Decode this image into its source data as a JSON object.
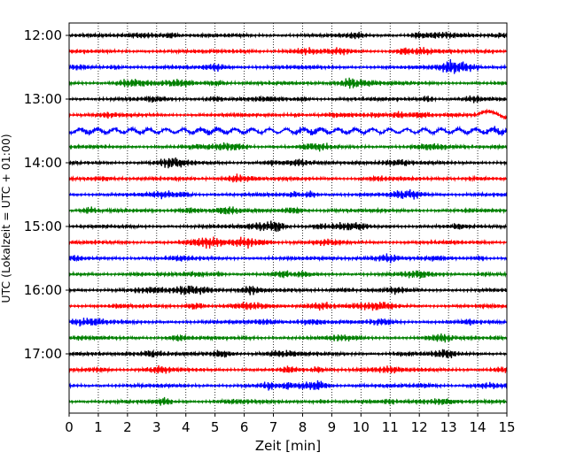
{
  "chart_data": {
    "type": "line",
    "subtype": "helicorder",
    "title": "",
    "xlabel": "Zeit  [min]",
    "ylabel": "UTC (Lokalzeit = UTC + 01:00)",
    "xlim": [
      0,
      15
    ],
    "x_ticks": [
      "0",
      "1",
      "2",
      "3",
      "4",
      "5",
      "6",
      "7",
      "8",
      "9",
      "10",
      "11",
      "12",
      "13",
      "14",
      "15"
    ],
    "y_tick_labels": [
      "12:00",
      "13:00",
      "14:00",
      "15:00",
      "16:00",
      "17:00"
    ],
    "grid": "vertical dotted lines at each minute",
    "trace_interval_minutes": 15,
    "trace_colors": [
      "#000000",
      "#ff0000",
      "#0000ff",
      "#008000"
    ],
    "traces": [
      {
        "start": "12:00",
        "color": "#000000"
      },
      {
        "start": "12:15",
        "color": "#ff0000"
      },
      {
        "start": "12:30",
        "color": "#0000ff"
      },
      {
        "start": "12:45",
        "color": "#008000"
      },
      {
        "start": "13:00",
        "color": "#000000"
      },
      {
        "start": "13:15",
        "color": "#ff0000"
      },
      {
        "start": "13:30",
        "color": "#0000ff"
      },
      {
        "start": "13:45",
        "color": "#008000"
      },
      {
        "start": "14:00",
        "color": "#000000"
      },
      {
        "start": "14:15",
        "color": "#ff0000"
      },
      {
        "start": "14:30",
        "color": "#0000ff"
      },
      {
        "start": "14:45",
        "color": "#008000"
      },
      {
        "start": "15:00",
        "color": "#000000"
      },
      {
        "start": "15:15",
        "color": "#ff0000"
      },
      {
        "start": "15:30",
        "color": "#0000ff"
      },
      {
        "start": "15:45",
        "color": "#008000"
      },
      {
        "start": "16:00",
        "color": "#000000"
      },
      {
        "start": "16:15",
        "color": "#ff0000"
      },
      {
        "start": "16:30",
        "color": "#0000ff"
      },
      {
        "start": "16:45",
        "color": "#008000"
      },
      {
        "start": "17:00",
        "color": "#000000"
      },
      {
        "start": "17:15",
        "color": "#ff0000"
      },
      {
        "start": "17:30",
        "color": "#0000ff"
      },
      {
        "start": "17:45",
        "color": "#008000"
      }
    ]
  }
}
